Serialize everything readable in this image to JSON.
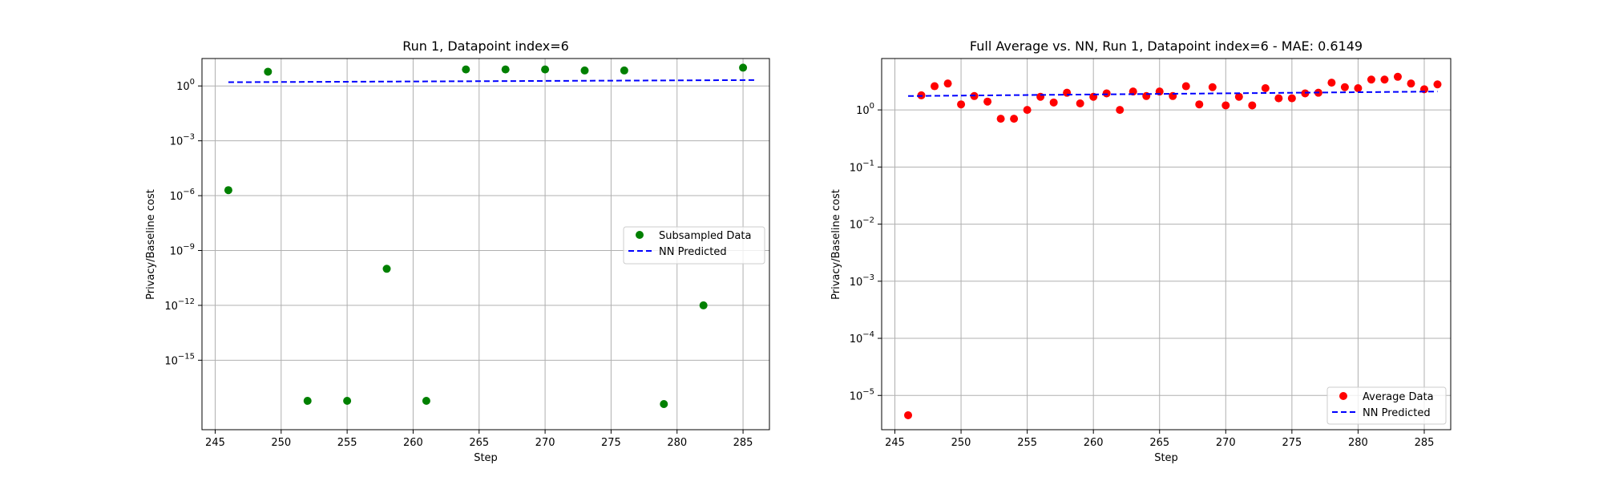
{
  "charts": [
    {
      "title": "Run 1, Datapoint index=6",
      "xlabel": "Step",
      "ylabel": "Privacy/Baseline cost",
      "legend": [
        {
          "label": "Subsampled Data",
          "kind": "marker",
          "color": "#008000"
        },
        {
          "label": "NN Predicted",
          "kind": "dashed",
          "color": "#0000ff"
        }
      ]
    },
    {
      "title": "Full Average vs. NN, Run 1, Datapoint index=6 - MAE: 0.6149",
      "xlabel": "Step",
      "ylabel": "Privacy/Baseline cost",
      "legend": [
        {
          "label": "Average Data",
          "kind": "marker",
          "color": "#ff0000"
        },
        {
          "label": "NN Predicted",
          "kind": "dashed",
          "color": "#0000ff"
        }
      ]
    }
  ],
  "chart_data": [
    {
      "type": "scatter",
      "title": "Run 1, Datapoint index=6",
      "xlabel": "Step",
      "ylabel": "Privacy/Baseline cost",
      "yscale": "log",
      "xlim": [
        244.0,
        287.0
      ],
      "ylim_exp": [
        -18.8,
        1.5
      ],
      "xticks": [
        245,
        250,
        255,
        260,
        265,
        270,
        275,
        280,
        285
      ],
      "ytick_exps": [
        0,
        -3,
        -6,
        -9,
        -12,
        -15
      ],
      "grid": true,
      "legend_position": "center-right",
      "series": [
        {
          "name": "Subsampled Data",
          "kind": "scatter",
          "color": "#008000",
          "x": [
            246,
            249,
            252,
            255,
            258,
            261,
            264,
            267,
            270,
            273,
            276,
            279,
            282,
            285
          ],
          "y": [
            2e-06,
            6.0,
            6e-18,
            6e-18,
            1e-10,
            6e-18,
            8.0,
            8.0,
            8.0,
            7.0,
            7.0,
            4e-18,
            1e-12,
            10.0
          ]
        },
        {
          "name": "NN Predicted",
          "kind": "dashed-line",
          "color": "#0000ff",
          "x": [
            246,
            286
          ],
          "y": [
            1.6,
            2.1
          ]
        }
      ]
    },
    {
      "type": "scatter",
      "title": "Full Average vs. NN, Run 1, Datapoint index=6 - MAE: 0.6149",
      "xlabel": "Step",
      "ylabel": "Privacy/Baseline cost",
      "yscale": "log",
      "xlim": [
        244.0,
        287.0
      ],
      "ylim_exp": [
        -5.6,
        0.9
      ],
      "xticks": [
        245,
        250,
        255,
        260,
        265,
        270,
        275,
        280,
        285
      ],
      "ytick_exps": [
        0,
        -1,
        -2,
        -3,
        -4,
        -5
      ],
      "grid": true,
      "legend_position": "lower-right",
      "series": [
        {
          "name": "Average Data",
          "kind": "scatter",
          "color": "#ff0000",
          "x": [
            246,
            247,
            248,
            249,
            250,
            251,
            252,
            253,
            254,
            255,
            256,
            257,
            258,
            259,
            260,
            261,
            262,
            263,
            264,
            265,
            266,
            267,
            268,
            269,
            270,
            271,
            272,
            273,
            274,
            275,
            276,
            277,
            278,
            279,
            280,
            281,
            282,
            283,
            284,
            285,
            286
          ],
          "y": [
            4.5e-06,
            1.8,
            2.6,
            2.9,
            1.25,
            1.75,
            1.4,
            0.7,
            0.7,
            1.0,
            1.7,
            1.35,
            2.0,
            1.3,
            1.7,
            1.95,
            1.0,
            2.1,
            1.75,
            2.1,
            1.75,
            2.6,
            1.25,
            2.5,
            1.2,
            1.7,
            1.2,
            2.4,
            1.6,
            1.6,
            1.95,
            2.0,
            3.0,
            2.5,
            2.4,
            3.4,
            3.4,
            3.8,
            2.9,
            2.3,
            2.8
          ]
        },
        {
          "name": "NN Predicted",
          "kind": "dashed-line",
          "color": "#0000ff",
          "x": [
            246,
            286
          ],
          "y": [
            1.75,
            2.1
          ]
        }
      ]
    }
  ]
}
